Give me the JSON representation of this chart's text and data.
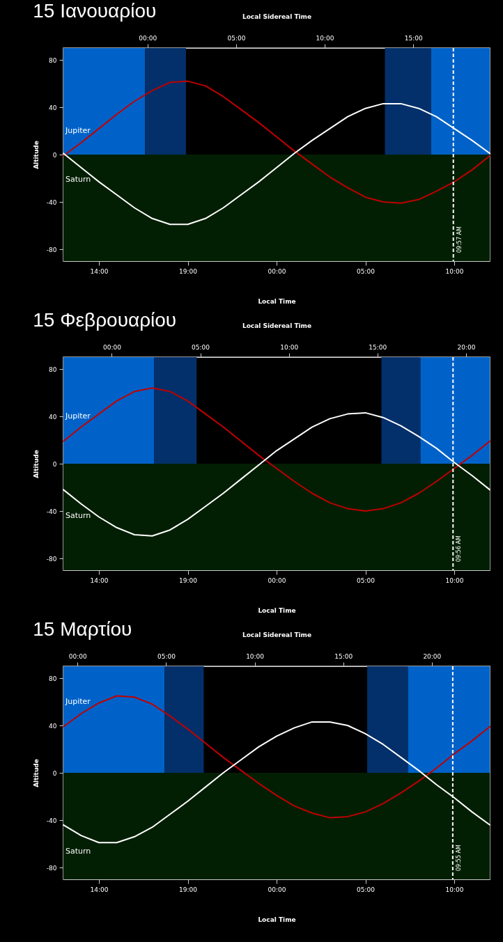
{
  "chart_data": [
    {
      "type": "line",
      "title": "15 Ιανουαρίου",
      "xlabel": "Local Time",
      "x2label": "Local Sidereal Time",
      "ylabel": "Altitude",
      "x": [
        "--01-15T12:00",
        "--01-15T13:00",
        "--01-15T14:00",
        "--01-15T15:00",
        "--01-15T16:00",
        "--01-15T17:00",
        "--01-15T18:00",
        "--01-15T19:00",
        "--01-15T20:00",
        "--01-15T21:00",
        "--01-15T22:00",
        "--01-15T23:00",
        "--01-16T00:00",
        "--01-16T01:00",
        "--01-16T02:00",
        "--01-16T03:00",
        "--01-16T04:00",
        "--01-16T05:00",
        "--01-16T06:00",
        "--01-16T07:00",
        "--01-16T08:00",
        "--01-16T09:00",
        "--01-16T10:00",
        "--01-16T11:00",
        "--01-16T12:00"
      ],
      "xlim": [
        "--01-15T12:00",
        "--01-16T12:00"
      ],
      "ylim": [
        -90,
        90
      ],
      "x2lim": [
        -4.75,
        19.32
      ],
      "xticks": [
        {
          "value": "--01-15T14:00",
          "label": "14:00"
        },
        {
          "value": "--01-15T19:00",
          "label": "19:00"
        },
        {
          "value": "--01-16T00:00",
          "label": "00:00"
        },
        {
          "value": "--01-16T05:00",
          "label": "05:00"
        },
        {
          "value": "--01-16T10:00",
          "label": "10:00"
        }
      ],
      "x2ticks": [
        {
          "value": 0,
          "label": "00:00"
        },
        {
          "value": 5,
          "label": "05:00"
        },
        {
          "value": 10,
          "label": "10:00"
        },
        {
          "value": 15,
          "label": "15:00"
        }
      ],
      "yticks": [
        -80,
        -40,
        0,
        40,
        80
      ],
      "bands": [
        {
          "axis": "x",
          "from": "--01-15T12:00",
          "to": "--01-15T16:36",
          "color": "#0062c8"
        },
        {
          "axis": "x",
          "from": "--01-15T16:36",
          "to": "--01-15T18:54",
          "color": "#03306a"
        },
        {
          "axis": "x",
          "from": "--01-16T06:06",
          "to": "--01-16T08:42",
          "color": "#03306a"
        },
        {
          "axis": "x",
          "from": "--01-16T08:42",
          "to": "--01-16T12:00",
          "color": "#0062c8"
        },
        {
          "axis": "y",
          "from": -90,
          "to": 0,
          "color": "#031f03"
        }
      ],
      "ref_lines": [
        {
          "axis": "x",
          "value": "--01-16T09:57",
          "label": "09:57 AM",
          "color": "#ffffff",
          "line_style": "dashed"
        }
      ],
      "series": [
        {
          "name": "Jupiter",
          "color": "#c00000",
          "values": [
            -1,
            10,
            22,
            34,
            45,
            54,
            61,
            62,
            58,
            49,
            38,
            27,
            15,
            3,
            -8,
            -19,
            -28,
            -36,
            -40,
            -41,
            -38,
            -31,
            -23,
            -13,
            -1
          ]
        },
        {
          "name": "Saturn",
          "color": "#ffffff",
          "values": [
            1,
            -11,
            -23,
            -34,
            -45,
            -54,
            -59,
            -59,
            -54,
            -45,
            -34,
            -23,
            -11,
            1,
            12,
            22,
            32,
            39,
            43,
            43,
            39,
            32,
            22,
            12,
            1
          ]
        }
      ]
    },
    {
      "type": "line",
      "title": "15 Φεβρουαρίου",
      "xlabel": "Local Time",
      "x2label": "Local Sidereal Time",
      "ylabel": "Altitude",
      "x": [
        "--02-15T12:00",
        "--02-15T13:00",
        "--02-15T14:00",
        "--02-15T15:00",
        "--02-15T16:00",
        "--02-15T17:00",
        "--02-15T18:00",
        "--02-15T19:00",
        "--02-15T20:00",
        "--02-15T21:00",
        "--02-15T22:00",
        "--02-15T23:00",
        "--02-16T00:00",
        "--02-16T01:00",
        "--02-16T02:00",
        "--02-16T03:00",
        "--02-16T04:00",
        "--02-16T05:00",
        "--02-16T06:00",
        "--02-16T07:00",
        "--02-16T08:00",
        "--02-16T09:00",
        "--02-16T10:00",
        "--02-16T11:00",
        "--02-16T12:00"
      ],
      "xlim": [
        "--02-15T12:00",
        "--02-16T12:00"
      ],
      "ylim": [
        -90,
        90
      ],
      "x2lim": [
        -2.73,
        21.34
      ],
      "xticks": [
        {
          "value": "--02-15T14:00",
          "label": "14:00"
        },
        {
          "value": "--02-15T19:00",
          "label": "19:00"
        },
        {
          "value": "--02-16T00:00",
          "label": "00:00"
        },
        {
          "value": "--02-16T05:00",
          "label": "05:00"
        },
        {
          "value": "--02-16T10:00",
          "label": "10:00"
        }
      ],
      "x2ticks": [
        {
          "value": 0,
          "label": "00:00"
        },
        {
          "value": 5,
          "label": "05:00"
        },
        {
          "value": 10,
          "label": "10:00"
        },
        {
          "value": 15,
          "label": "15:00"
        },
        {
          "value": 20,
          "label": "20:00"
        }
      ],
      "yticks": [
        -80,
        -40,
        0,
        40,
        80
      ],
      "bands": [
        {
          "axis": "x",
          "from": "--02-15T12:00",
          "to": "--02-15T17:06",
          "color": "#0062c8"
        },
        {
          "axis": "x",
          "from": "--02-15T17:06",
          "to": "--02-15T19:30",
          "color": "#03306a"
        },
        {
          "axis": "x",
          "from": "--02-16T05:54",
          "to": "--02-16T08:06",
          "color": "#03306a"
        },
        {
          "axis": "x",
          "from": "--02-16T08:06",
          "to": "--02-16T12:00",
          "color": "#0062c8"
        },
        {
          "axis": "y",
          "from": -90,
          "to": 0,
          "color": "#031f03"
        }
      ],
      "ref_lines": [
        {
          "axis": "x",
          "value": "--02-16T09:56",
          "label": "09:56 AM",
          "color": "#ffffff",
          "line_style": "dashed"
        }
      ],
      "series": [
        {
          "name": "Jupiter",
          "color": "#c00000",
          "values": [
            19,
            31,
            42,
            53,
            61,
            64,
            61,
            53,
            42,
            31,
            19,
            7,
            -4,
            -15,
            -25,
            -33,
            -38,
            -40,
            -38,
            -33,
            -25,
            -15,
            -4,
            7,
            19
          ]
        },
        {
          "name": "Saturn",
          "color": "#ffffff",
          "values": [
            -22,
            -34,
            -45,
            -54,
            -60,
            -61,
            -56,
            -47,
            -36,
            -25,
            -13,
            -1,
            11,
            21,
            31,
            38,
            42,
            43,
            39,
            32,
            23,
            13,
            1,
            -10,
            -22
          ]
        }
      ]
    },
    {
      "type": "line",
      "title": "15 Μαρτίου",
      "xlabel": "Local Time",
      "x2label": "Local Sidereal Time",
      "ylabel": "Altitude",
      "x": [
        "--03-15T12:00",
        "--03-15T13:00",
        "--03-15T14:00",
        "--03-15T15:00",
        "--03-15T16:00",
        "--03-15T17:00",
        "--03-15T18:00",
        "--03-15T19:00",
        "--03-15T20:00",
        "--03-15T21:00",
        "--03-15T22:00",
        "--03-15T23:00",
        "--03-16T00:00",
        "--03-16T01:00",
        "--03-16T02:00",
        "--03-16T03:00",
        "--03-16T04:00",
        "--03-16T05:00",
        "--03-16T06:00",
        "--03-16T07:00",
        "--03-16T08:00",
        "--03-16T09:00",
        "--03-16T10:00",
        "--03-16T11:00",
        "--03-16T12:00"
      ],
      "xlim": [
        "--03-15T12:00",
        "--03-16T12:00"
      ],
      "ylim": [
        -90,
        90
      ],
      "x2lim": [
        -0.8,
        23.27
      ],
      "xticks": [
        {
          "value": "--03-15T14:00",
          "label": "14:00"
        },
        {
          "value": "--03-15T19:00",
          "label": "19:00"
        },
        {
          "value": "--03-16T00:00",
          "label": "00:00"
        },
        {
          "value": "--03-16T05:00",
          "label": "05:00"
        },
        {
          "value": "--03-16T10:00",
          "label": "10:00"
        }
      ],
      "x2ticks": [
        {
          "value": 0,
          "label": "00:00"
        },
        {
          "value": 5,
          "label": "05:00"
        },
        {
          "value": 10,
          "label": "10:00"
        },
        {
          "value": 15,
          "label": "15:00"
        },
        {
          "value": 20,
          "label": "20:00"
        }
      ],
      "yticks": [
        -80,
        -40,
        0,
        40,
        80
      ],
      "bands": [
        {
          "axis": "x",
          "from": "--03-15T12:00",
          "to": "--03-15T17:42",
          "color": "#0062c8"
        },
        {
          "axis": "x",
          "from": "--03-15T17:42",
          "to": "--03-15T19:54",
          "color": "#03306a"
        },
        {
          "axis": "x",
          "from": "--03-16T05:06",
          "to": "--03-16T07:24",
          "color": "#03306a"
        },
        {
          "axis": "x",
          "from": "--03-16T07:24",
          "to": "--03-16T12:00",
          "color": "#0062c8"
        },
        {
          "axis": "y",
          "from": -90,
          "to": 0,
          "color": "#031f03"
        }
      ],
      "ref_lines": [
        {
          "axis": "x",
          "value": "--03-16T09:55",
          "label": "09:55 AM",
          "color": "#ffffff",
          "line_style": "dashed"
        }
      ],
      "series": [
        {
          "name": "Jupiter",
          "color": "#c00000",
          "values": [
            39,
            50,
            59,
            65,
            64,
            58,
            48,
            37,
            25,
            13,
            2,
            -9,
            -19,
            -28,
            -34,
            -38,
            -37,
            -33,
            -26,
            -17,
            -7,
            4,
            16,
            27,
            39
          ]
        },
        {
          "name": "Saturn",
          "color": "#ffffff",
          "values": [
            -44,
            -53,
            -59,
            -59,
            -54,
            -46,
            -35,
            -24,
            -12,
            0,
            11,
            22,
            31,
            38,
            43,
            43,
            40,
            33,
            24,
            13,
            2,
            -10,
            -21,
            -33,
            -44
          ]
        }
      ]
    }
  ]
}
